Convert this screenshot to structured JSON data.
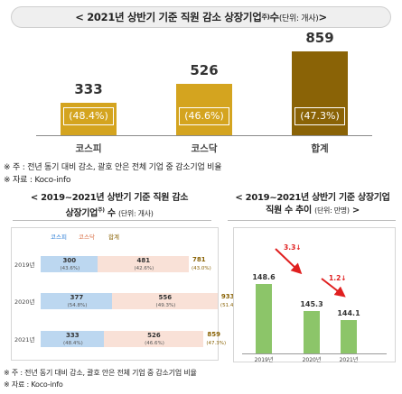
{
  "top": {
    "title_main": "< 2021년 상반기 기준 직원 감소 상장기업",
    "title_sup": "주)",
    "title_rest": " 수 ",
    "title_unit": "(단위: 개사)",
    "title_close": " >"
  },
  "chart_data": [
    {
      "type": "bar",
      "title": "2021년 상반기 기준 직원 감소 상장기업 수 (단위: 개사)",
      "categories": [
        "코스피",
        "코스닥",
        "합계"
      ],
      "values": [
        333,
        526,
        859
      ],
      "value_labels": [
        "333",
        "526",
        "859"
      ],
      "percent_labels": [
        "(48.4%)",
        "(46.6%)",
        "(47.3%)"
      ],
      "colors": [
        "#d4a41f",
        "#d4a41f",
        "#8a6306"
      ],
      "ylim": [
        0,
        900
      ]
    },
    {
      "type": "bar",
      "orientation": "horizontal-stacked",
      "title": "2019~2021년 상반기 기준 직원 감소 상장기업 수 (단위: 개사)",
      "categories": [
        "2019년",
        "2020년",
        "2021년"
      ],
      "series": [
        {
          "name": "코스피",
          "values": [
            300,
            377,
            333
          ],
          "percent_labels": [
            "(43.6%)",
            "(54.8%)",
            "(48.4%)"
          ],
          "color": "#bcd7f0"
        },
        {
          "name": "코스닥",
          "values": [
            481,
            556,
            526
          ],
          "percent_labels": [
            "(42.6%)",
            "(49.3%)",
            "(46.6%)"
          ],
          "color": "#f9e1d7"
        }
      ],
      "totals": {
        "name": "합계",
        "values": [
          781,
          933,
          859
        ],
        "percent_labels": [
          "(43.0%)",
          "(51.4%)",
          "(47.3%)"
        ],
        "color": "#8a6306"
      }
    },
    {
      "type": "bar",
      "title": "2019~2021년 상반기 기준 상장기업 직원 수 추이 (단위: 만명)",
      "categories": [
        "2019년",
        "2020년",
        "2021년"
      ],
      "values": [
        148.6,
        145.3,
        144.1
      ],
      "changes": [
        "3.3↓",
        "1.2↓"
      ],
      "color": "#8cc569",
      "ylim": [
        140,
        150
      ]
    }
  ],
  "footnotes": {
    "top_note": "※ 주 : 전년 동기 대비 감소, 괄호 안은 전체 기업 중 감소기업 비율",
    "top_source": "※ 자료 : Koco-info",
    "bottom_note": "※ 주 : 전년 동기 대비 감소, 괄호 안은 전체 기업 중 감소기업 비율",
    "bottom_source": "※ 자료 : Koco-info"
  },
  "left_panel": {
    "title_line1": "< 2019~2021년 상반기 기준 직원 감소",
    "title_line2_main": "상장기업",
    "title_sup": "주)",
    "title_line2_rest": " 수 ",
    "title_unit": "(단위: 개사)",
    "legend": [
      "코스피",
      "코스닥",
      "합계"
    ]
  },
  "right_panel": {
    "title_line1": "< 2019~2021년 상반기 기준 상장기업",
    "title_line2_main": "직원 수 추이 ",
    "title_unit": "(단위: 만명)",
    "title_close": " >"
  }
}
